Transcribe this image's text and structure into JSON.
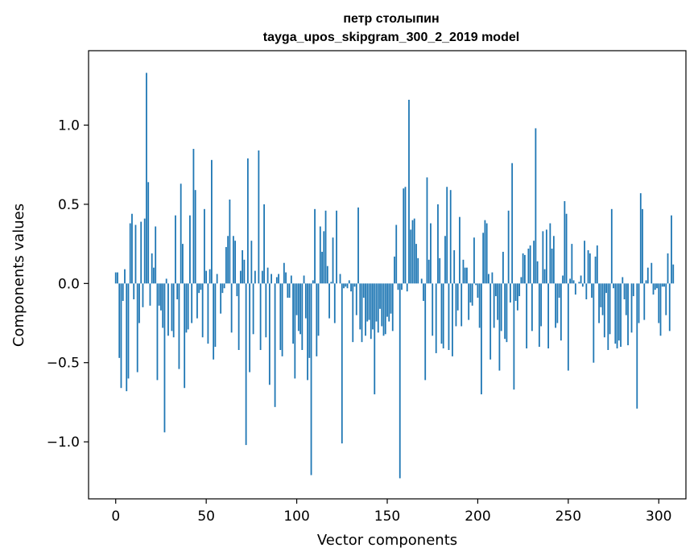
{
  "chart_data": {
    "type": "bar",
    "title": "петр столыпин",
    "subtitle": "tayga_upos_skipgram_300_2_2019 model",
    "xlabel": "Vector components",
    "ylabel": "Components values",
    "xlim": [
      -15,
      315
    ],
    "ylim": [
      -1.36,
      1.47
    ],
    "x_ticks": [
      0,
      50,
      100,
      150,
      200,
      250,
      300
    ],
    "x_tick_labels": [
      "0",
      "50",
      "100",
      "150",
      "200",
      "250",
      "300"
    ],
    "y_ticks": [
      -1.0,
      -0.5,
      0.0,
      0.5,
      1.0
    ],
    "y_tick_labels": [
      "−1.0",
      "−0.5",
      "0.0",
      "0.5",
      "1.0"
    ],
    "bar_color": "#1f77b4",
    "grid": false,
    "values": [
      0.07,
      0.07,
      -0.47,
      -0.66,
      -0.11,
      0.09,
      -0.68,
      -0.6,
      0.38,
      0.44,
      -0.1,
      0.37,
      -0.56,
      -0.25,
      0.39,
      -0.15,
      0.41,
      1.33,
      0.64,
      -0.14,
      0.19,
      0.1,
      0.36,
      -0.61,
      -0.14,
      -0.17,
      -0.28,
      -0.94,
      0.03,
      -0.33,
      0.0,
      -0.3,
      -0.34,
      0.43,
      -0.1,
      -0.54,
      0.63,
      0.25,
      -0.66,
      -0.31,
      -0.29,
      0.43,
      -0.25,
      0.85,
      0.59,
      -0.22,
      -0.06,
      -0.04,
      -0.34,
      0.47,
      0.08,
      -0.38,
      0.09,
      0.78,
      -0.48,
      -0.4,
      0.06,
      0.0,
      -0.19,
      -0.06,
      -0.03,
      0.23,
      0.3,
      0.53,
      -0.31,
      0.3,
      0.27,
      -0.08,
      -0.42,
      0.08,
      0.21,
      0.15,
      -1.02,
      0.79,
      -0.56,
      0.27,
      -0.32,
      0.08,
      0.0,
      0.84,
      -0.42,
      0.08,
      0.5,
      -0.34,
      0.1,
      -0.64,
      0.06,
      0.0,
      -0.78,
      0.04,
      0.06,
      -0.42,
      -0.46,
      0.13,
      0.07,
      -0.09,
      -0.09,
      0.05,
      -0.38,
      -0.6,
      -0.2,
      -0.3,
      -0.32,
      -0.42,
      0.05,
      -0.22,
      -0.61,
      -0.47,
      -1.21,
      0.02,
      0.47,
      -0.46,
      -0.33,
      0.36,
      0.2,
      0.33,
      0.46,
      0.11,
      -0.22,
      0.01,
      0.29,
      -0.25,
      0.46,
      0.0,
      0.06,
      -1.01,
      -0.03,
      -0.02,
      -0.03,
      0.02,
      -0.05,
      -0.37,
      -0.02,
      -0.2,
      0.48,
      -0.29,
      -0.37,
      -0.09,
      -0.33,
      -0.24,
      -0.23,
      -0.35,
      -0.29,
      -0.7,
      -0.24,
      -0.31,
      -0.16,
      -0.27,
      -0.33,
      -0.32,
      -0.21,
      -0.24,
      -0.19,
      -0.3,
      0.17,
      0.37,
      -0.04,
      -1.23,
      -0.04,
      0.6,
      0.61,
      -0.05,
      1.16,
      0.34,
      0.4,
      0.41,
      0.25,
      0.16,
      0.0,
      0.03,
      -0.11,
      -0.61,
      0.67,
      0.15,
      0.38,
      -0.33,
      0.0,
      -0.44,
      0.5,
      0.16,
      -0.38,
      -0.41,
      0.3,
      0.61,
      -0.42,
      0.59,
      -0.46,
      0.21,
      -0.27,
      -0.17,
      0.42,
      -0.27,
      0.15,
      0.1,
      0.1,
      -0.23,
      -0.12,
      -0.14,
      0.29,
      -0.01,
      -0.09,
      -0.28,
      -0.7,
      0.32,
      0.4,
      0.38,
      0.06,
      -0.48,
      0.07,
      -0.28,
      -0.08,
      -0.23,
      -0.55,
      -0.3,
      0.2,
      -0.35,
      -0.37,
      0.46,
      -0.12,
      0.76,
      -0.67,
      -0.11,
      -0.17,
      -0.08,
      0.04,
      0.19,
      0.18,
      -0.41,
      0.22,
      0.24,
      -0.3,
      0.27,
      0.98,
      0.14,
      -0.4,
      -0.27,
      0.33,
      0.09,
      0.34,
      -0.41,
      0.38,
      0.22,
      0.3,
      -0.28,
      -0.25,
      -0.09,
      -0.36,
      0.05,
      0.52,
      0.44,
      -0.55,
      0.03,
      0.25,
      0.02,
      -0.07,
      0.0,
      0.01,
      0.05,
      -0.02,
      0.27,
      -0.1,
      0.21,
      0.19,
      -0.09,
      -0.5,
      0.17,
      0.24,
      -0.25,
      -0.15,
      -0.2,
      -0.34,
      -0.06,
      -0.42,
      -0.32,
      0.47,
      -0.03,
      -0.38,
      -0.41,
      -0.36,
      -0.4,
      0.04,
      -0.1,
      -0.2,
      -0.39,
      0.0,
      -0.31,
      -0.08,
      0.0,
      -0.79,
      -0.25,
      0.57,
      0.47,
      -0.23,
      0.02,
      0.1,
      0.0,
      0.13,
      -0.07,
      -0.04,
      -0.03,
      -0.25,
      -0.33,
      -0.02,
      -0.02,
      -0.2,
      0.19,
      -0.3,
      0.43,
      0.12
    ]
  }
}
